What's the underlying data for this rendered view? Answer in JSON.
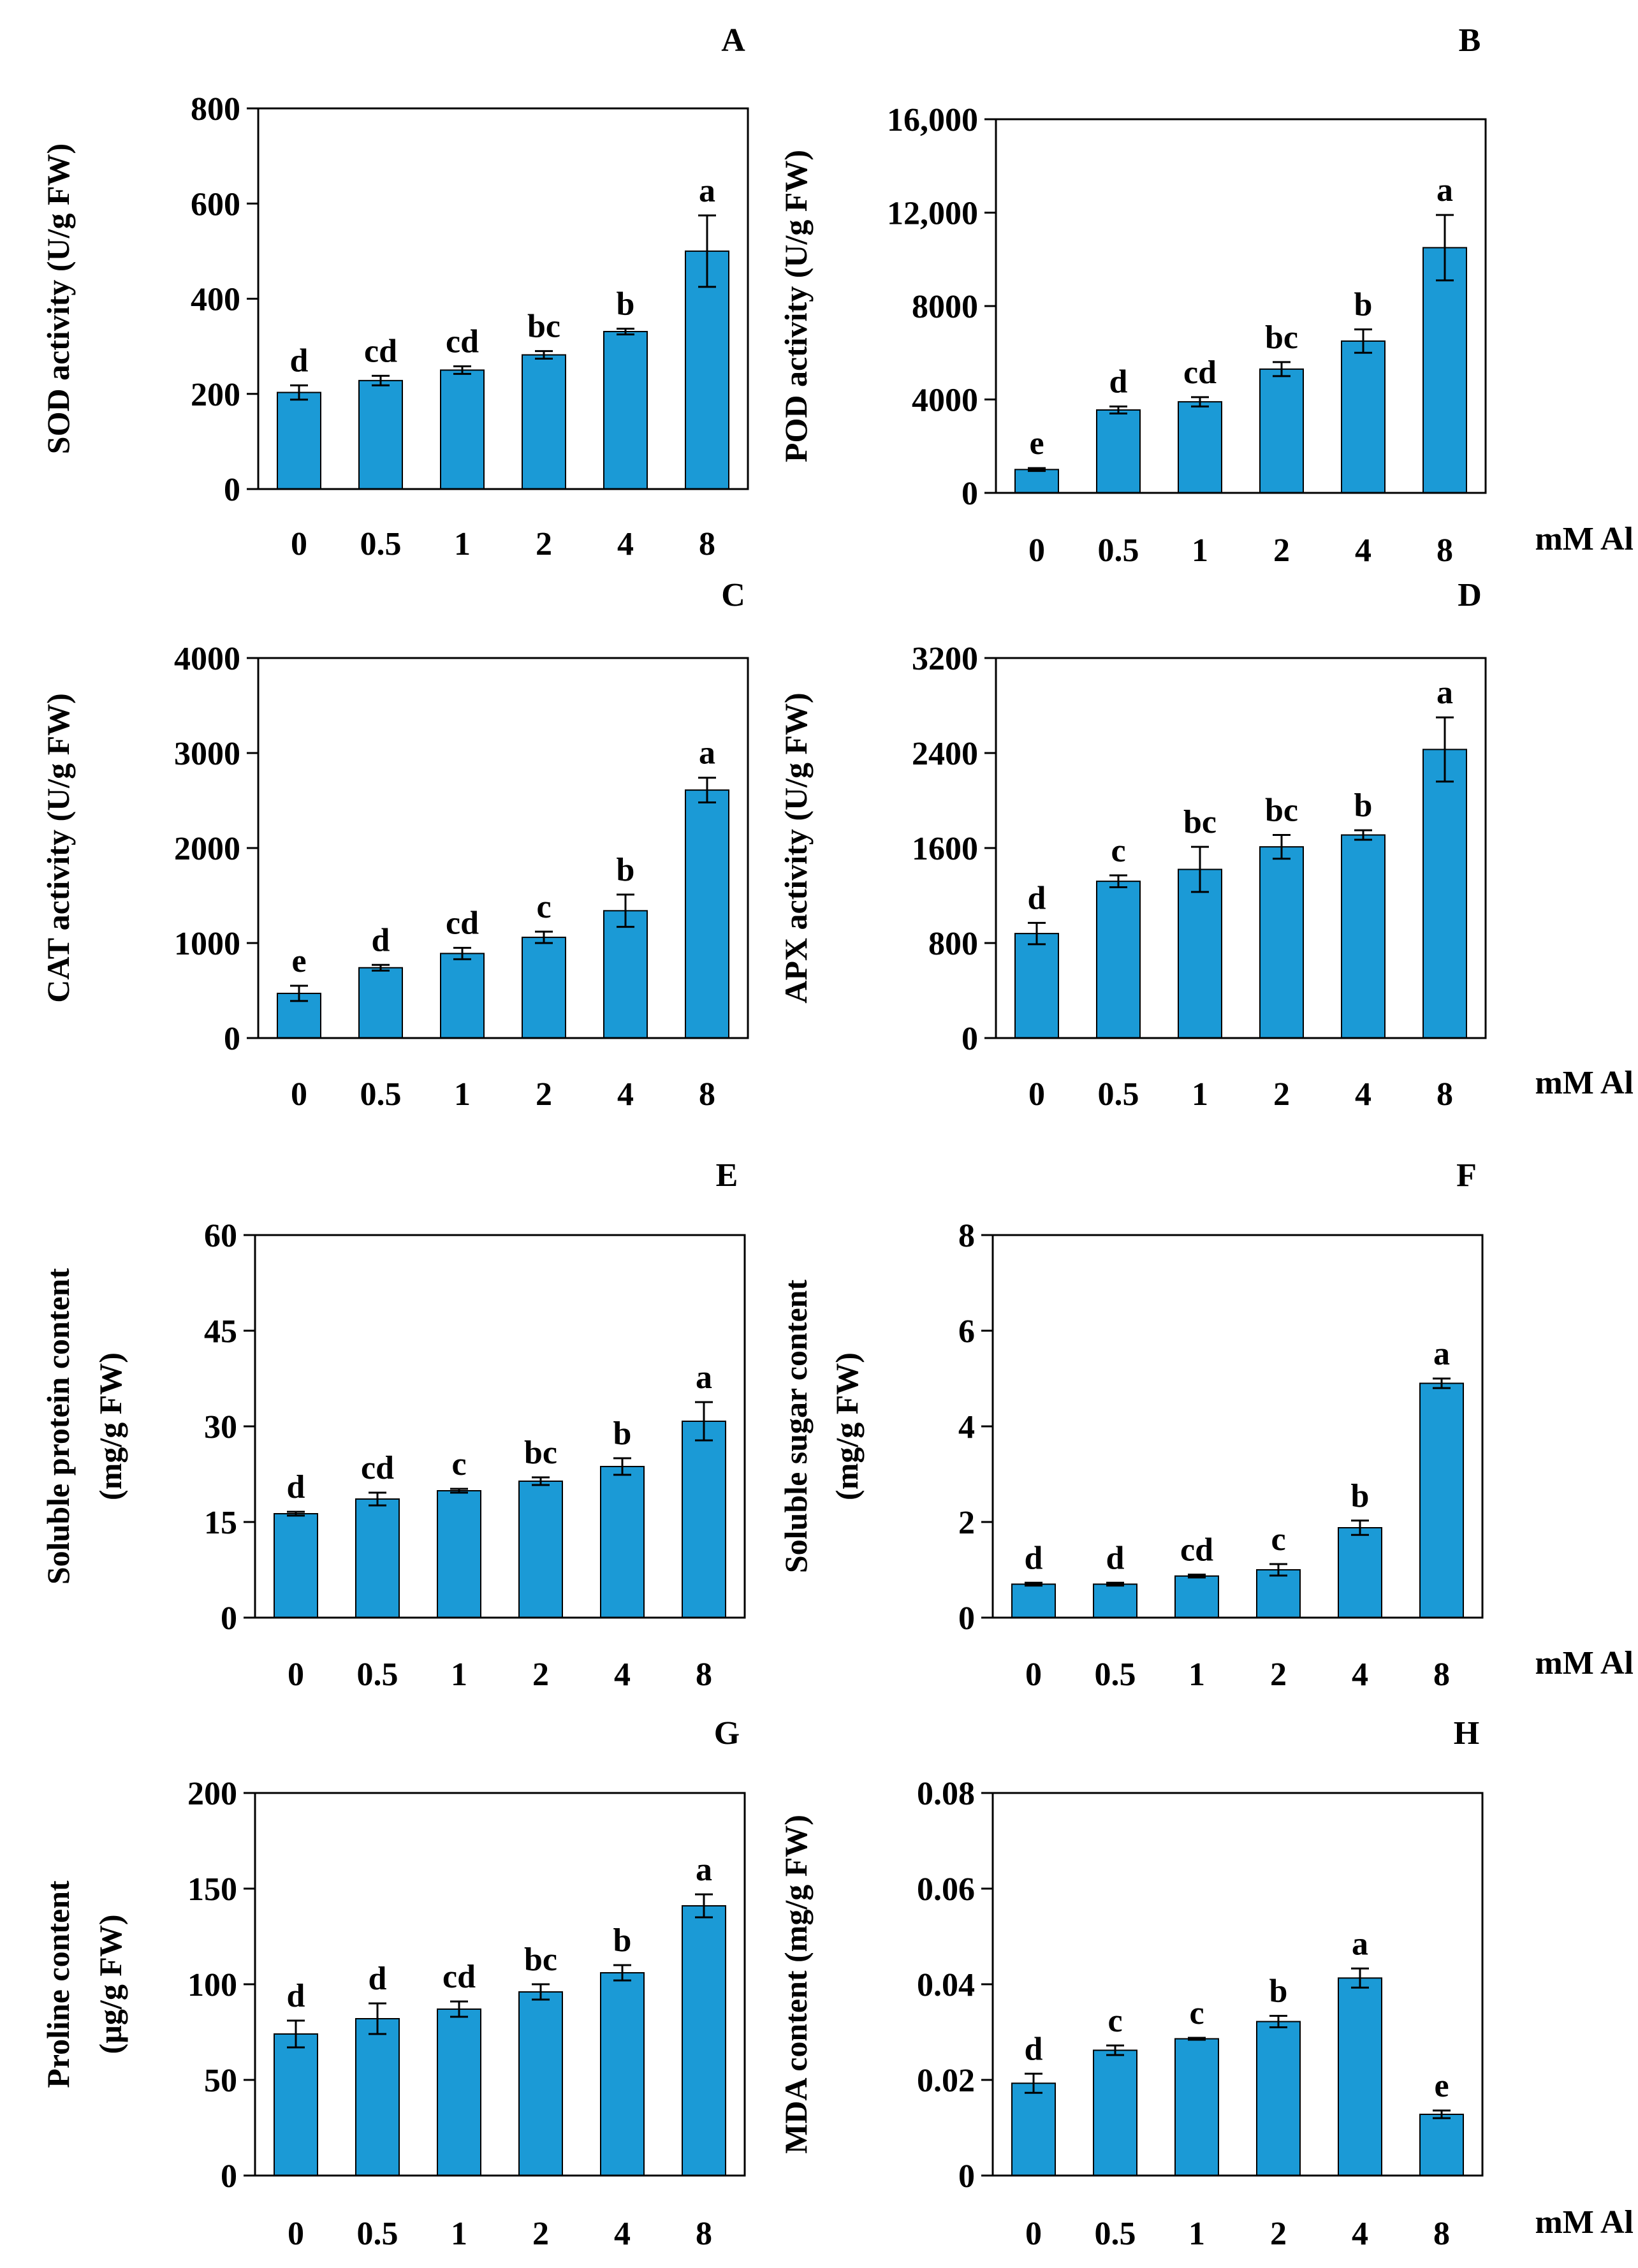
{
  "figure": {
    "unit_label": "mM Al"
  },
  "chart_data": [
    {
      "type": "bar",
      "panel": "A",
      "categories": [
        "0",
        "0.5",
        "1",
        "2",
        "4",
        "8"
      ],
      "values": [
        203,
        228,
        250,
        282,
        331,
        500
      ],
      "errors": [
        15,
        10,
        8,
        8,
        6,
        75
      ],
      "significance": [
        "d",
        "cd",
        "cd",
        "bc",
        "b",
        "a"
      ],
      "ylabel": [
        "SOD activity (U/g FW)"
      ],
      "ylim": [
        0,
        800
      ],
      "yticks": [
        0,
        200,
        400,
        600,
        800
      ],
      "ytick_labels": [
        "0",
        "200",
        "400",
        "600",
        "800"
      ],
      "color": "#1b9ad6"
    },
    {
      "type": "bar",
      "panel": "B",
      "categories": [
        "0",
        "0.5",
        "1",
        "2",
        "4",
        "8"
      ],
      "values": [
        1000,
        3550,
        3900,
        5300,
        6500,
        10500
      ],
      "errors": [
        60,
        150,
        200,
        300,
        500,
        1400
      ],
      "significance": [
        "e",
        "d",
        "cd",
        "bc",
        "b",
        "a"
      ],
      "ylabel": [
        "POD activity (U/g FW)"
      ],
      "ylim": [
        0,
        16000
      ],
      "yticks": [
        0,
        4000,
        8000,
        12000,
        16000
      ],
      "ytick_labels": [
        "0",
        "4000",
        "8000",
        "12,000",
        "16,000"
      ],
      "color": "#1b9ad6"
    },
    {
      "type": "bar",
      "panel": "C",
      "categories": [
        "0",
        "0.5",
        "1",
        "2",
        "4",
        "8"
      ],
      "values": [
        470,
        740,
        890,
        1060,
        1340,
        2610
      ],
      "errors": [
        80,
        30,
        60,
        60,
        170,
        130
      ],
      "significance": [
        "e",
        "d",
        "cd",
        "c",
        "b",
        "a"
      ],
      "ylabel": [
        "CAT activity (U/g FW)"
      ],
      "ylim": [
        0,
        4000
      ],
      "yticks": [
        0,
        1000,
        2000,
        3000,
        4000
      ],
      "ytick_labels": [
        "0",
        "1000",
        "2000",
        "3000",
        "4000"
      ],
      "color": "#1b9ad6"
    },
    {
      "type": "bar",
      "panel": "D",
      "categories": [
        "0",
        "0.5",
        "1",
        "2",
        "4",
        "8"
      ],
      "values": [
        880,
        1320,
        1420,
        1610,
        1710,
        2430
      ],
      "errors": [
        90,
        50,
        190,
        100,
        40,
        270
      ],
      "significance": [
        "d",
        "c",
        "bc",
        "bc",
        "b",
        "a"
      ],
      "ylabel": [
        "APX activity (U/g FW)"
      ],
      "ylim": [
        0,
        3200
      ],
      "yticks": [
        0,
        800,
        1600,
        2400,
        3200
      ],
      "ytick_labels": [
        "0",
        "800",
        "1600",
        "2400",
        "3200"
      ],
      "color": "#1b9ad6"
    },
    {
      "type": "bar",
      "panel": "E",
      "categories": [
        "0",
        "0.5",
        "1",
        "2",
        "4",
        "8"
      ],
      "values": [
        16.3,
        18.6,
        19.9,
        21.4,
        23.7,
        30.8
      ],
      "errors": [
        0.3,
        1.0,
        0.3,
        0.6,
        1.3,
        3.0
      ],
      "significance": [
        "d",
        "cd",
        "c",
        "bc",
        "b",
        "a"
      ],
      "ylabel": [
        "Soluble protein content",
        "(mg/g FW)"
      ],
      "ylim": [
        0,
        60
      ],
      "yticks": [
        0,
        15,
        30,
        45,
        60
      ],
      "ytick_labels": [
        "0",
        "15",
        "30",
        "45",
        "60"
      ],
      "color": "#1b9ad6"
    },
    {
      "type": "bar",
      "panel": "F",
      "categories": [
        "0",
        "0.5",
        "1",
        "2",
        "4",
        "8"
      ],
      "values": [
        0.7,
        0.7,
        0.87,
        1.0,
        1.88,
        4.9
      ],
      "errors": [
        0.03,
        0.03,
        0.03,
        0.12,
        0.15,
        0.1
      ],
      "significance": [
        "d",
        "d",
        "cd",
        "c",
        "b",
        "a"
      ],
      "ylabel": [
        "Soluble sugar content",
        "(mg/g FW)"
      ],
      "ylim": [
        0,
        8
      ],
      "yticks": [
        0,
        2,
        4,
        6,
        8
      ],
      "ytick_labels": [
        "0",
        "2",
        "4",
        "6",
        "8"
      ],
      "color": "#1b9ad6"
    },
    {
      "type": "bar",
      "panel": "G",
      "categories": [
        "0",
        "0.5",
        "1",
        "2",
        "4",
        "8"
      ],
      "values": [
        74,
        82,
        87,
        96,
        106,
        141
      ],
      "errors": [
        7,
        8,
        4,
        4,
        4,
        6
      ],
      "significance": [
        "d",
        "d",
        "cd",
        "bc",
        "b",
        "a"
      ],
      "ylabel": [
        "Proline content",
        "(µg/g FW)"
      ],
      "ylim": [
        0,
        200
      ],
      "yticks": [
        0,
        50,
        100,
        150,
        200
      ],
      "ytick_labels": [
        "0",
        "50",
        "100",
        "150",
        "200"
      ],
      "color": "#1b9ad6"
    },
    {
      "type": "bar",
      "panel": "H",
      "categories": [
        "0",
        "0.5",
        "1",
        "2",
        "4",
        "8"
      ],
      "values": [
        0.0193,
        0.0262,
        0.0286,
        0.0322,
        0.0413,
        0.0128
      ],
      "errors": [
        0.002,
        0.001,
        0.0002,
        0.0012,
        0.002,
        0.0008
      ],
      "significance": [
        "d",
        "c",
        "c",
        "b",
        "a",
        "e"
      ],
      "ylabel": [
        "MDA content (mg/g FW)"
      ],
      "ylim": [
        0,
        0.08
      ],
      "yticks": [
        0,
        0.02,
        0.04,
        0.06,
        0.08
      ],
      "ytick_labels": [
        "0",
        "0.02",
        "0.04",
        "0.06",
        "0.08"
      ],
      "color": "#1b9ad6"
    }
  ]
}
